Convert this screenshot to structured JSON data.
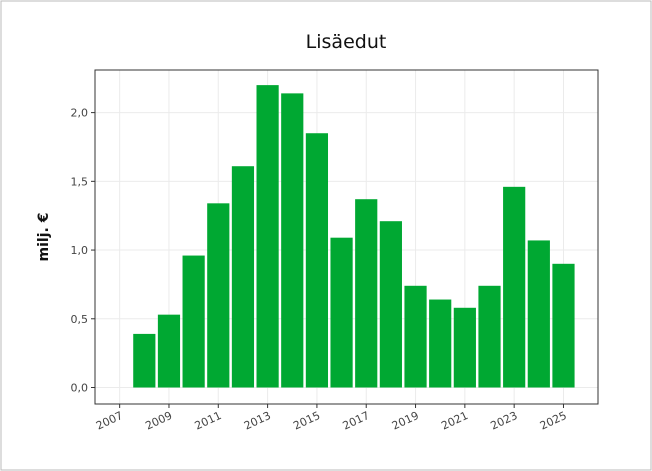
{
  "chart_data": {
    "type": "bar",
    "title": "Lisäedut",
    "y_label": "milj. €",
    "x": [
      2008,
      2009,
      2010,
      2011,
      2012,
      2013,
      2014,
      2015,
      2016,
      2017,
      2018,
      2019,
      2020,
      2021,
      2022,
      2023,
      2024,
      2025
    ],
    "values": [
      0.39,
      0.53,
      0.96,
      1.34,
      1.61,
      2.2,
      2.14,
      1.85,
      1.09,
      1.37,
      1.21,
      0.74,
      0.64,
      0.58,
      0.74,
      1.46,
      1.07,
      0.9
    ],
    "color": "#00a832",
    "xlim": [
      2006,
      2026.4
    ],
    "xticks": [
      2007,
      2009,
      2011,
      2013,
      2015,
      2017,
      2019,
      2021,
      2023,
      2025
    ],
    "ylim": [
      -0.12,
      2.31
    ],
    "yticks": [
      {
        "value": 0,
        "label": "0,0"
      },
      {
        "value": 0.5,
        "label": "0,5"
      },
      {
        "value": 1,
        "label": "1,0"
      },
      {
        "value": 1.5,
        "label": "1,5"
      },
      {
        "value": 2,
        "label": "2,0"
      }
    ],
    "grid": true
  }
}
